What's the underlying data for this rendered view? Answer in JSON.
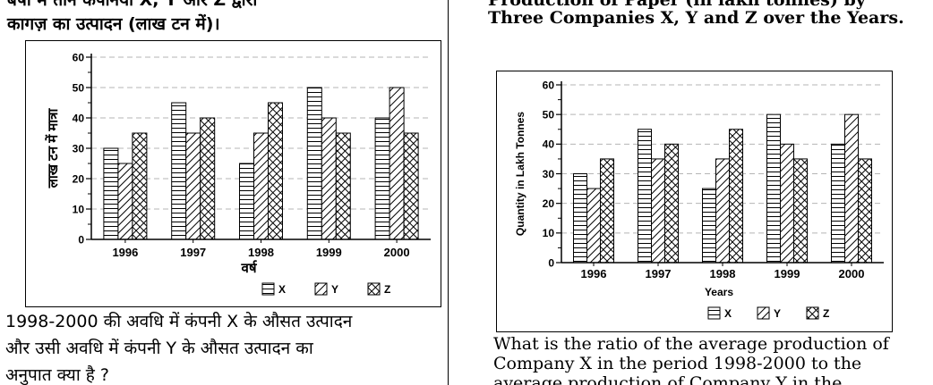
{
  "left_panel": {
    "heading_lines": [
      "बर्षा में तीन कंपनियों X, Y और Z द्वारा",
      "कागज़ का उत्पादन (लाख टन में)।"
    ],
    "question_lines": [
      "1998-2000 की अवधि में कंपनी X के औसत उत्पादन",
      "और उसी अवधि में कंपनी Y के औसत उत्पादन का",
      "अनुपात क्या है ?"
    ]
  },
  "right_panel": {
    "heading_lines": [
      "Production of Paper (in lakh tonnes) by",
      "Three Companies X, Y and Z over the Years."
    ],
    "question_lines": [
      "What is the ratio of the average production of",
      "Company X in the period 1998-2000 to the",
      "average production of Company Y in the"
    ]
  },
  "chart_data": [
    {
      "type": "bar",
      "categories": [
        "1996",
        "1997",
        "1998",
        "1999",
        "2000"
      ],
      "series": [
        {
          "name": "X",
          "values": [
            30,
            45,
            25,
            50,
            40
          ]
        },
        {
          "name": "Y",
          "values": [
            25,
            35,
            35,
            40,
            50
          ]
        },
        {
          "name": "Z",
          "values": [
            35,
            40,
            45,
            35,
            35
          ]
        }
      ],
      "xlabel": "वर्ष",
      "ylabel": "लाख टन में मात्रा",
      "ylim": [
        0,
        60
      ],
      "yticks": [
        0,
        10,
        20,
        30,
        40,
        50,
        60
      ],
      "grid": "dashed-horizontal",
      "legend": "bottom-right"
    },
    {
      "type": "bar",
      "categories": [
        "1996",
        "1997",
        "1998",
        "1999",
        "2000"
      ],
      "series": [
        {
          "name": "X",
          "values": [
            30,
            45,
            25,
            50,
            40
          ]
        },
        {
          "name": "Y",
          "values": [
            25,
            35,
            35,
            40,
            50
          ]
        },
        {
          "name": "Z",
          "values": [
            35,
            40,
            45,
            35,
            35
          ]
        }
      ],
      "xlabel": "Years",
      "ylabel": "Quantity in Lakh Tonnes",
      "ylim": [
        0,
        60
      ],
      "yticks": [
        0,
        10,
        20,
        30,
        40,
        50,
        60
      ],
      "grid": "dashed-horizontal",
      "legend": "bottom-right"
    }
  ]
}
